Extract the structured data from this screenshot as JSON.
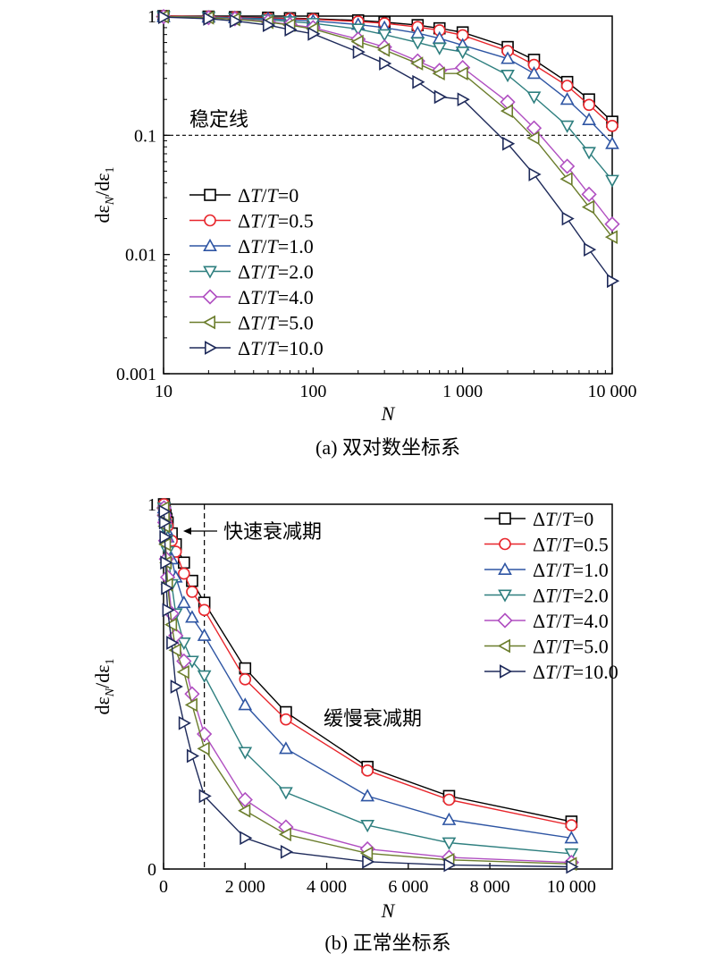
{
  "chart_data": [
    {
      "type": "line",
      "caption": "(a) 双对数坐标系",
      "xlabel": "N",
      "ylabel_main": "dε",
      "ylabel_sub1": "N",
      "ylabel_mid": "/dε",
      "ylabel_sub2": "1",
      "x_scale": "log",
      "y_scale": "log",
      "xlim": [
        10,
        10000
      ],
      "ylim": [
        0.001,
        1
      ],
      "x_ticks": [
        10,
        100,
        1000,
        10000
      ],
      "x_tick_labels": [
        "10",
        "100",
        "1 000",
        "10 000"
      ],
      "y_ticks": [
        1,
        0.1,
        0.01,
        0.001
      ],
      "y_tick_labels": [
        "1",
        "0.1",
        "0.01",
        "0.001"
      ],
      "legend_position": "bottom-left",
      "annotation": "稳定线",
      "stability_line_y": 0.1,
      "x": [
        10,
        20,
        30,
        50,
        70,
        100,
        200,
        300,
        500,
        700,
        1000,
        2000,
        3000,
        5000,
        7000,
        10000
      ],
      "series": [
        {
          "name": "ΔT/T=0",
          "marker": "square",
          "color": "#000000",
          "values": [
            1.0,
            0.99,
            0.98,
            0.97,
            0.96,
            0.95,
            0.92,
            0.89,
            0.84,
            0.79,
            0.73,
            0.55,
            0.43,
            0.28,
            0.2,
            0.13
          ]
        },
        {
          "name": "ΔT/T=0.5",
          "marker": "circle",
          "color": "#e8262c",
          "values": [
            1.0,
            0.99,
            0.98,
            0.96,
            0.95,
            0.94,
            0.9,
            0.87,
            0.81,
            0.76,
            0.69,
            0.51,
            0.39,
            0.26,
            0.18,
            0.12
          ]
        },
        {
          "name": "ΔT/T=1.0",
          "marker": "triangle-up",
          "color": "#2e55a3",
          "values": [
            0.99,
            0.98,
            0.97,
            0.95,
            0.93,
            0.91,
            0.85,
            0.8,
            0.72,
            0.65,
            0.57,
            0.44,
            0.33,
            0.2,
            0.135,
            0.085
          ]
        },
        {
          "name": "ΔT/T=2.0",
          "marker": "triangle-down",
          "color": "#2e7f7f",
          "values": [
            0.99,
            0.98,
            0.96,
            0.93,
            0.9,
            0.87,
            0.78,
            0.7,
            0.6,
            0.54,
            0.5,
            0.32,
            0.21,
            0.12,
            0.072,
            0.042
          ]
        },
        {
          "name": "ΔT/T=4.0",
          "marker": "diamond",
          "color": "#b04fc1",
          "values": [
            0.99,
            0.97,
            0.95,
            0.9,
            0.85,
            0.8,
            0.64,
            0.55,
            0.42,
            0.35,
            0.37,
            0.19,
            0.115,
            0.055,
            0.032,
            0.018
          ]
        },
        {
          "name": "ΔT/T=5.0",
          "marker": "triangle-left",
          "color": "#6b7d2c",
          "values": [
            0.99,
            0.97,
            0.94,
            0.89,
            0.84,
            0.78,
            0.61,
            0.52,
            0.4,
            0.33,
            0.33,
            0.16,
            0.095,
            0.043,
            0.025,
            0.014
          ]
        },
        {
          "name": "ΔT/T=10.0",
          "marker": "triangle-right",
          "color": "#1e2a5a",
          "values": [
            0.98,
            0.95,
            0.91,
            0.84,
            0.77,
            0.71,
            0.5,
            0.4,
            0.28,
            0.21,
            0.2,
            0.085,
            0.047,
            0.02,
            0.011,
            0.006
          ]
        }
      ]
    },
    {
      "type": "line",
      "caption": "(b) 正常坐标系",
      "xlabel": "N",
      "ylabel_main": "dε",
      "ylabel_sub1": "N",
      "ylabel_mid": "/dε",
      "ylabel_sub2": "1",
      "x_scale": "linear",
      "y_scale": "linear",
      "xlim": [
        0,
        11000
      ],
      "ylim": [
        0,
        1
      ],
      "x_ticks": [
        0,
        2000,
        4000,
        6000,
        8000,
        10000
      ],
      "x_tick_labels": [
        "0",
        "2 000",
        "4 000",
        "6 000",
        "8 000",
        "10 000"
      ],
      "y_ticks": [
        0,
        1
      ],
      "y_tick_labels": [
        "0",
        "1"
      ],
      "legend_position": "top-right",
      "annotation_fast": "快速衰减期",
      "annotation_slow": "缓慢衰减期",
      "divider_x": 1000,
      "x": [
        10,
        20,
        30,
        50,
        70,
        100,
        200,
        300,
        500,
        700,
        1000,
        2000,
        3000,
        5000,
        7000,
        10000
      ],
      "series": [
        {
          "name": "ΔT/T=0",
          "marker": "square",
          "color": "#000000",
          "values": [
            1.0,
            0.99,
            0.98,
            0.97,
            0.96,
            0.95,
            0.92,
            0.89,
            0.84,
            0.79,
            0.73,
            0.55,
            0.43,
            0.28,
            0.2,
            0.13
          ]
        },
        {
          "name": "ΔT/T=0.5",
          "marker": "circle",
          "color": "#e8262c",
          "values": [
            1.0,
            0.99,
            0.98,
            0.96,
            0.95,
            0.94,
            0.9,
            0.87,
            0.81,
            0.76,
            0.71,
            0.52,
            0.41,
            0.27,
            0.19,
            0.12
          ]
        },
        {
          "name": "ΔT/T=1.0",
          "marker": "triangle-up",
          "color": "#2e55a3",
          "values": [
            0.99,
            0.98,
            0.97,
            0.95,
            0.93,
            0.91,
            0.85,
            0.8,
            0.73,
            0.69,
            0.64,
            0.45,
            0.33,
            0.2,
            0.135,
            0.085
          ]
        },
        {
          "name": "ΔT/T=2.0",
          "marker": "triangle-down",
          "color": "#2e7f7f",
          "values": [
            0.99,
            0.98,
            0.96,
            0.93,
            0.9,
            0.87,
            0.78,
            0.7,
            0.62,
            0.57,
            0.53,
            0.32,
            0.21,
            0.12,
            0.072,
            0.042
          ]
        },
        {
          "name": "ΔT/T=4.0",
          "marker": "diamond",
          "color": "#b04fc1",
          "values": [
            0.99,
            0.97,
            0.95,
            0.9,
            0.85,
            0.8,
            0.7,
            0.64,
            0.57,
            0.48,
            0.37,
            0.19,
            0.115,
            0.055,
            0.032,
            0.018
          ]
        },
        {
          "name": "ΔT/T=5.0",
          "marker": "triangle-left",
          "color": "#6b7d2c",
          "values": [
            0.99,
            0.97,
            0.94,
            0.89,
            0.84,
            0.78,
            0.67,
            0.6,
            0.54,
            0.45,
            0.33,
            0.16,
            0.095,
            0.043,
            0.025,
            0.014
          ]
        },
        {
          "name": "ΔT/T=10.0",
          "marker": "triangle-right",
          "color": "#1e2a5a",
          "values": [
            0.98,
            0.95,
            0.91,
            0.84,
            0.77,
            0.71,
            0.62,
            0.5,
            0.4,
            0.31,
            0.2,
            0.085,
            0.047,
            0.02,
            0.011,
            0.006
          ]
        }
      ]
    }
  ]
}
